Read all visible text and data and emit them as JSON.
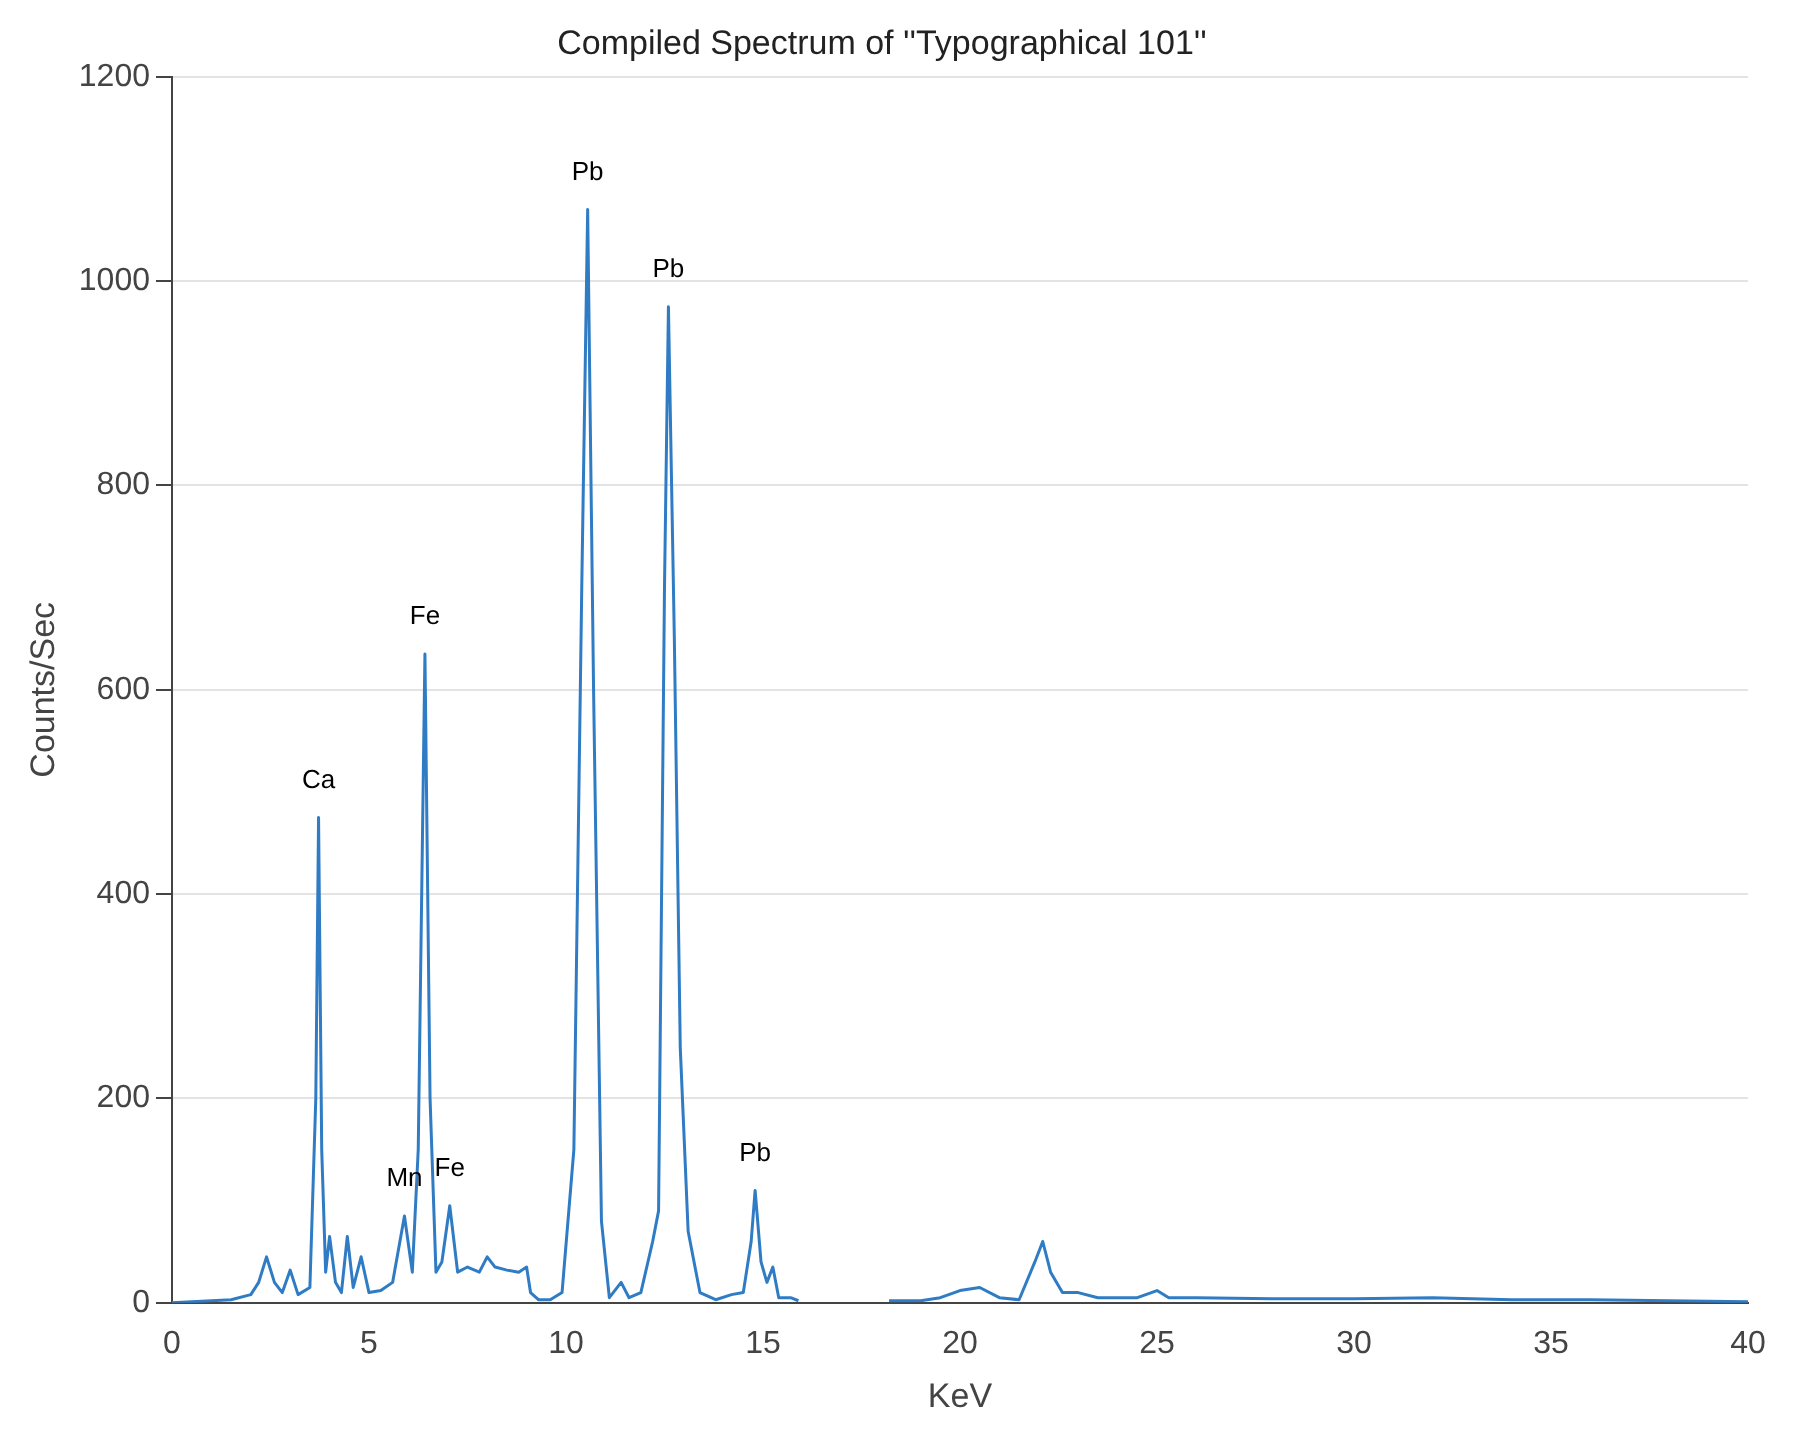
{
  "chart_data": {
    "type": "line",
    "title": "Compiled Spectrum of ''Typographical 101''",
    "xlabel": "KeV",
    "ylabel": "Counts/Sec",
    "xlim": [
      0,
      40
    ],
    "xticks": [
      0,
      5,
      10,
      15,
      20,
      25,
      30,
      35,
      40
    ],
    "ylim": [
      0,
      1200
    ],
    "yticks": [
      0,
      200,
      400,
      600,
      800,
      1000,
      1200
    ],
    "grid": "y",
    "series": [
      {
        "color": "#2f7cc4",
        "x": [
          0,
          1,
          1.5,
          2,
          2.2,
          2.4,
          2.6,
          2.8,
          3.0,
          3.2,
          3.5,
          3.65,
          3.72,
          3.8,
          3.9,
          4.0,
          4.15,
          4.3,
          4.45,
          4.6,
          4.8,
          5.0,
          5.3,
          5.6,
          5.9,
          6.1,
          6.25,
          6.42,
          6.55,
          6.7,
          6.85,
          7.05,
          7.25,
          7.5,
          7.8,
          8.0,
          8.2,
          8.5,
          8.8,
          9.0,
          9.1,
          9.3,
          9.6,
          9.9,
          10.2,
          10.4,
          10.55,
          10.7,
          10.9,
          11.1,
          11.4,
          11.6,
          11.9,
          12.2,
          12.35,
          12.5,
          12.6,
          12.75,
          12.9,
          13.1,
          13.4,
          13.8,
          14.2,
          14.5,
          14.7,
          14.8,
          14.95,
          15.1,
          15.25,
          15.4,
          15.7,
          15.9,
          16,
          18.2,
          19,
          19.5,
          20.0,
          20.5,
          21.0,
          21.5,
          21.9,
          22.1,
          22.3,
          22.6,
          23.0,
          23.5,
          24.5,
          25.0,
          25.3,
          26,
          28,
          30,
          32,
          34,
          36,
          38,
          40
        ],
        "values": [
          0,
          2,
          3,
          8,
          20,
          45,
          20,
          10,
          32,
          8,
          15,
          200,
          475,
          150,
          30,
          65,
          20,
          10,
          65,
          15,
          45,
          10,
          12,
          20,
          85,
          30,
          150,
          635,
          200,
          30,
          40,
          95,
          30,
          35,
          30,
          45,
          35,
          32,
          30,
          35,
          10,
          3,
          3,
          10,
          150,
          700,
          1070,
          600,
          80,
          5,
          20,
          5,
          10,
          60,
          90,
          700,
          975,
          650,
          250,
          70,
          10,
          3,
          8,
          10,
          60,
          110,
          40,
          20,
          35,
          5,
          5,
          2,
          null,
          2,
          2,
          5,
          12,
          15,
          5,
          3,
          40,
          60,
          30,
          10,
          10,
          5,
          5,
          12,
          5,
          5,
          4,
          4,
          5,
          3,
          3,
          2,
          1
        ]
      }
    ],
    "annotations": [
      {
        "text": "Ca",
        "x": 3.72,
        "y": 475
      },
      {
        "text": "Fe",
        "x": 6.42,
        "y": 635
      },
      {
        "text": "Pb",
        "x": 10.55,
        "y": 1070
      },
      {
        "text": "Pb",
        "x": 12.6,
        "y": 975
      },
      {
        "text": "Mn",
        "x": 5.9,
        "y": 85
      },
      {
        "text": "Fe",
        "x": 7.05,
        "y": 95
      },
      {
        "text": "Pb",
        "x": 14.8,
        "y": 110
      }
    ]
  }
}
